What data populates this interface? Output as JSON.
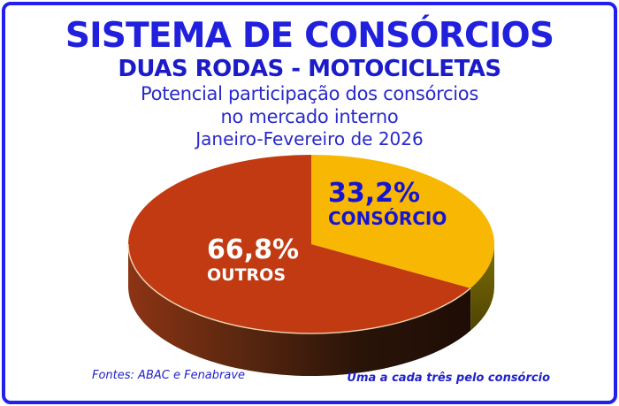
{
  "colors": {
    "border": "#2121ee",
    "title": "#2020dd",
    "subtitle": "#1b1bc9",
    "body": "#2929cd",
    "footer": "#2222cc",
    "label_on_yellow": "#1515d2",
    "label_on_red": "#ffffff"
  },
  "header": {
    "title": "SISTEMA DE CONSÓRCIOS",
    "subtitle": "DUAS RODAS - MOTOCICLETAS",
    "caption_line1": "Potencial participação dos consórcios",
    "caption_line2": "no mercado interno",
    "period": "Janeiro-Fevereiro de 2026"
  },
  "chart_data": {
    "type": "pie",
    "effect": "3d",
    "start_angle_deg": 90,
    "direction": "clockwise",
    "title": "Potencial participação dos consórcios no mercado interno",
    "period": "Janeiro-Fevereiro de 2026",
    "rim_highlight": "#f2ddba",
    "slices": [
      {
        "name": "CONSÓRCIO",
        "value": 33.2,
        "value_label": "33,2%",
        "color": "#f7b703",
        "side_colors": [
          "#7e6e05",
          "#4e4302"
        ]
      },
      {
        "name": "OUTROS",
        "value": 66.8,
        "value_label": "66,8%",
        "color": "#c13a12",
        "side_colors": [
          "#8c3414",
          "#5a2710",
          "#2a1408",
          "#1e0d06"
        ]
      }
    ]
  },
  "footer": {
    "source": "Fontes: ABAC e Fenabrave",
    "note": "Uma a cada três pelo consórcio"
  }
}
